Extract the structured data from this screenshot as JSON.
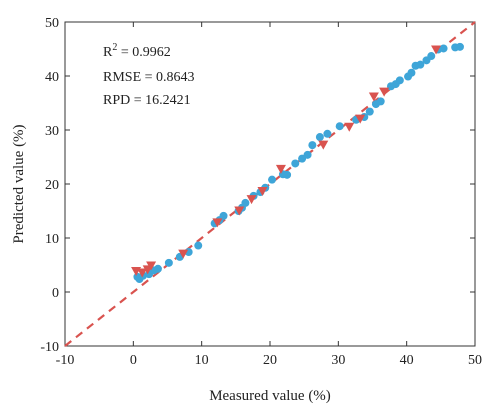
{
  "chart_data": {
    "type": "scatter",
    "title": "",
    "xlabel": "Measured value (%)",
    "ylabel": "Predicted value (%)",
    "xlim": [
      -10,
      50
    ],
    "ylim": [
      -10,
      50
    ],
    "xticks": [
      -10,
      0,
      10,
      20,
      30,
      40,
      50
    ],
    "yticks": [
      -10,
      0,
      10,
      20,
      30,
      40,
      50
    ],
    "grid": false,
    "annotations": {
      "r2_prefix": "R",
      "r2_sup": "2",
      "r2_value": " = 0.9962",
      "rmse": "RMSE = 0.8643",
      "rpd": "RPD = 16.2421"
    },
    "reference_line": {
      "style": "dashed",
      "color": "#d9534f",
      "x": [
        -10,
        50
      ],
      "y": [
        -10,
        50
      ]
    },
    "series": [
      {
        "marker": "circle",
        "color": "#3ea5d8",
        "points": [
          [
            0.6,
            2.8
          ],
          [
            0.9,
            2.4
          ],
          [
            1.4,
            3.0
          ],
          [
            2.3,
            3.3
          ],
          [
            3.0,
            4.0
          ],
          [
            3.6,
            4.3
          ],
          [
            5.2,
            5.4
          ],
          [
            6.8,
            6.5
          ],
          [
            8.1,
            7.4
          ],
          [
            9.5,
            8.6
          ],
          [
            11.9,
            12.7
          ],
          [
            12.6,
            13.3
          ],
          [
            13.2,
            14.1
          ],
          [
            15.4,
            15.0
          ],
          [
            15.9,
            15.6
          ],
          [
            16.4,
            16.5
          ],
          [
            17.6,
            17.8
          ],
          [
            18.6,
            18.5
          ],
          [
            19.3,
            19.3
          ],
          [
            20.3,
            20.8
          ],
          [
            21.9,
            21.8
          ],
          [
            22.5,
            21.7
          ],
          [
            23.7,
            23.8
          ],
          [
            24.7,
            24.7
          ],
          [
            25.5,
            25.4
          ],
          [
            26.2,
            27.2
          ],
          [
            27.3,
            28.7
          ],
          [
            28.4,
            29.3
          ],
          [
            30.2,
            30.7
          ],
          [
            32.6,
            31.9
          ],
          [
            33.8,
            32.4
          ],
          [
            34.6,
            33.4
          ],
          [
            35.5,
            34.8
          ],
          [
            36.2,
            35.3
          ],
          [
            37.7,
            38.1
          ],
          [
            38.4,
            38.5
          ],
          [
            39.0,
            39.2
          ],
          [
            40.2,
            39.9
          ],
          [
            40.7,
            40.6
          ],
          [
            41.3,
            41.9
          ],
          [
            42.0,
            42.1
          ],
          [
            42.9,
            42.9
          ],
          [
            43.6,
            43.7
          ],
          [
            44.6,
            44.9
          ],
          [
            45.4,
            45.1
          ],
          [
            47.1,
            45.3
          ],
          [
            47.8,
            45.4
          ]
        ]
      },
      {
        "marker": "triangle-down",
        "color": "#d9534f",
        "points": [
          [
            0.4,
            3.9
          ],
          [
            1.3,
            3.6
          ],
          [
            2.1,
            4.2
          ],
          [
            2.6,
            4.9
          ],
          [
            7.3,
            7.1
          ],
          [
            12.3,
            12.9
          ],
          [
            15.5,
            15.1
          ],
          [
            17.3,
            17.2
          ],
          [
            18.9,
            18.7
          ],
          [
            21.6,
            22.8
          ],
          [
            27.8,
            27.3
          ],
          [
            31.6,
            30.6
          ],
          [
            33.2,
            32.1
          ],
          [
            35.2,
            36.2
          ],
          [
            36.7,
            37.1
          ],
          [
            44.3,
            44.9
          ]
        ]
      }
    ]
  }
}
